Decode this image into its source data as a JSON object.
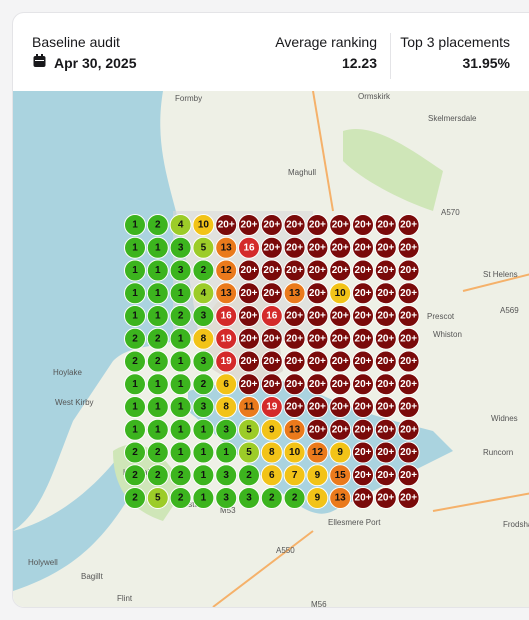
{
  "header": {
    "title": "Baseline audit",
    "date": "Apr 30, 2025",
    "stats": [
      {
        "label": "Average ranking",
        "value": "12.23"
      },
      {
        "label": "Top 3 placements",
        "value": "31.95%"
      }
    ]
  },
  "map": {
    "places": [
      "Formby",
      "Ormskirk",
      "Skelmersdale",
      "Maghull",
      "St Helens",
      "Prescot",
      "Whiston",
      "Widnes",
      "Runcorn",
      "Frodsham",
      "Hoylake",
      "West Kirby",
      "Heswall",
      "Neston",
      "Ellesmere Port",
      "Holywell",
      "Bagillt",
      "Flint",
      "A570",
      "A569",
      "M53",
      "A550",
      "M56"
    ],
    "grid": [
      [
        "1",
        "2",
        "4",
        "10",
        "20+",
        "20+",
        "20+",
        "20+",
        "20+",
        "20+",
        "20+",
        "20+",
        "20+"
      ],
      [
        "1",
        "1",
        "3",
        "5",
        "13",
        "16",
        "20+",
        "20+",
        "20+",
        "20+",
        "20+",
        "20+",
        "20+"
      ],
      [
        "1",
        "1",
        "3",
        "2",
        "12",
        "20+",
        "20+",
        "20+",
        "20+",
        "20+",
        "20+",
        "20+",
        "20+"
      ],
      [
        "1",
        "1",
        "1",
        "4",
        "13",
        "20+",
        "20+",
        "13",
        "20+",
        "10",
        "20+",
        "20+",
        "20+"
      ],
      [
        "1",
        "1",
        "2",
        "3",
        "16",
        "20+",
        "16",
        "20+",
        "20+",
        "20+",
        "20+",
        "20+",
        "20+"
      ],
      [
        "2",
        "2",
        "1",
        "8",
        "19",
        "20+",
        "20+",
        "20+",
        "20+",
        "20+",
        "20+",
        "20+",
        "20+"
      ],
      [
        "2",
        "2",
        "1",
        "3",
        "19",
        "20+",
        "20+",
        "20+",
        "20+",
        "20+",
        "20+",
        "20+",
        "20+"
      ],
      [
        "1",
        "1",
        "1",
        "2",
        "6",
        "20+",
        "20+",
        "20+",
        "20+",
        "20+",
        "20+",
        "20+",
        "20+"
      ],
      [
        "1",
        "1",
        "1",
        "3",
        "8",
        "11",
        "19",
        "20+",
        "20+",
        "20+",
        "20+",
        "20+",
        "20+"
      ],
      [
        "1",
        "1",
        "1",
        "1",
        "3",
        "5",
        "9",
        "13",
        "20+",
        "20+",
        "20+",
        "20+",
        "20+"
      ],
      [
        "2",
        "2",
        "1",
        "1",
        "1",
        "5",
        "8",
        "10",
        "12",
        "9",
        "20+",
        "20+",
        "20+"
      ],
      [
        "2",
        "2",
        "2",
        "1",
        "3",
        "2",
        "6",
        "7",
        "9",
        "15",
        "20+",
        "20+",
        "20+"
      ],
      [
        "2",
        "5",
        "2",
        "1",
        "3",
        "3",
        "2",
        "2",
        "9",
        "13",
        "20+",
        "20+",
        "20+"
      ]
    ]
  }
}
